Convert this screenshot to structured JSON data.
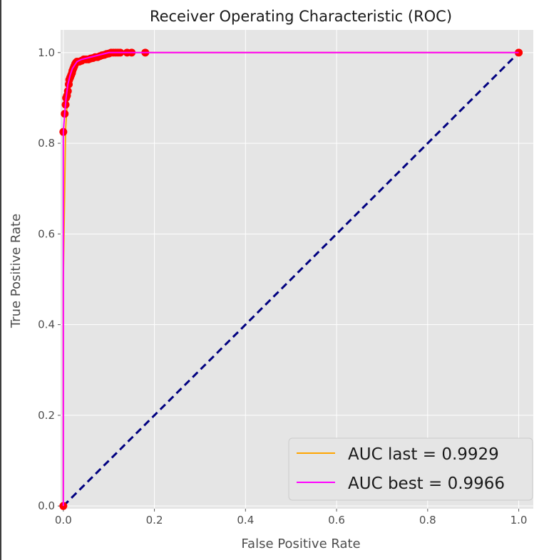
{
  "chart_data": {
    "type": "line",
    "title": "Receiver Operating Characteristic (ROC)",
    "xlabel": "False Positive Rate",
    "ylabel": "True Positive Rate",
    "xlim": [
      -0.006,
      1.032
    ],
    "ylim": [
      -0.006,
      1.05
    ],
    "xticks": [
      0.0,
      0.2,
      0.4,
      0.6,
      0.8,
      1.0
    ],
    "yticks": [
      0.0,
      0.2,
      0.4,
      0.6,
      0.8,
      1.0
    ],
    "tick_labels": [
      "0.0",
      "0.2",
      "0.4",
      "0.6",
      "0.8",
      "1.0"
    ],
    "grid": true,
    "background": "#e5e5e5",
    "legend_position": "lower-right",
    "series": [
      {
        "name": "AUC last = 0.9929",
        "color": "#ffa500",
        "x": [
          0.0,
          0.0,
          0.005,
          0.008,
          0.012,
          0.015,
          0.02,
          0.025,
          0.03,
          0.04,
          0.05,
          0.07,
          0.09,
          0.11,
          0.13,
          0.15,
          0.18,
          1.0
        ],
        "y": [
          0.0,
          0.5,
          0.83,
          0.88,
          0.92,
          0.94,
          0.96,
          0.97,
          0.975,
          0.98,
          0.985,
          0.99,
          0.995,
          0.998,
          1.0,
          1.0,
          1.0,
          1.0
        ]
      },
      {
        "name": "AUC best = 0.9966",
        "color": "#ff00ff",
        "x": [
          0.0,
          0.0,
          0.003,
          0.006,
          0.01,
          0.015,
          0.02,
          0.03,
          0.04,
          0.06,
          0.08,
          0.1,
          0.12,
          0.14,
          1.0
        ],
        "y": [
          0.0,
          0.825,
          0.865,
          0.9,
          0.93,
          0.95,
          0.965,
          0.98,
          0.985,
          0.99,
          0.995,
          1.0,
          1.0,
          1.0,
          1.0
        ]
      },
      {
        "name": "",
        "color": "#000080",
        "style": "dashed",
        "x": [
          0.0,
          1.0
        ],
        "y": [
          0.0,
          1.0
        ]
      }
    ],
    "markers": {
      "color": "#ff0000",
      "points": [
        [
          0.0,
          0.0
        ],
        [
          0.0,
          0.825
        ],
        [
          0.003,
          0.865
        ],
        [
          0.005,
          0.885
        ],
        [
          0.006,
          0.9
        ],
        [
          0.008,
          0.905
        ],
        [
          0.01,
          0.915
        ],
        [
          0.012,
          0.93
        ],
        [
          0.013,
          0.94
        ],
        [
          0.015,
          0.945
        ],
        [
          0.017,
          0.95
        ],
        [
          0.019,
          0.955
        ],
        [
          0.02,
          0.96
        ],
        [
          0.022,
          0.965
        ],
        [
          0.024,
          0.97
        ],
        [
          0.026,
          0.975
        ],
        [
          0.028,
          0.978
        ],
        [
          0.03,
          0.98
        ],
        [
          0.035,
          0.98
        ],
        [
          0.04,
          0.982
        ],
        [
          0.045,
          0.985
        ],
        [
          0.05,
          0.985
        ],
        [
          0.055,
          0.985
        ],
        [
          0.06,
          0.987
        ],
        [
          0.065,
          0.988
        ],
        [
          0.07,
          0.99
        ],
        [
          0.075,
          0.99
        ],
        [
          0.08,
          0.992
        ],
        [
          0.085,
          0.994
        ],
        [
          0.09,
          0.995
        ],
        [
          0.095,
          0.997
        ],
        [
          0.1,
          0.998
        ],
        [
          0.105,
          1.0
        ],
        [
          0.11,
          1.0
        ],
        [
          0.115,
          1.0
        ],
        [
          0.12,
          1.0
        ],
        [
          0.125,
          1.0
        ],
        [
          0.14,
          1.0
        ],
        [
          0.15,
          1.0
        ],
        [
          0.18,
          1.0
        ],
        [
          1.0,
          1.0
        ]
      ]
    }
  }
}
